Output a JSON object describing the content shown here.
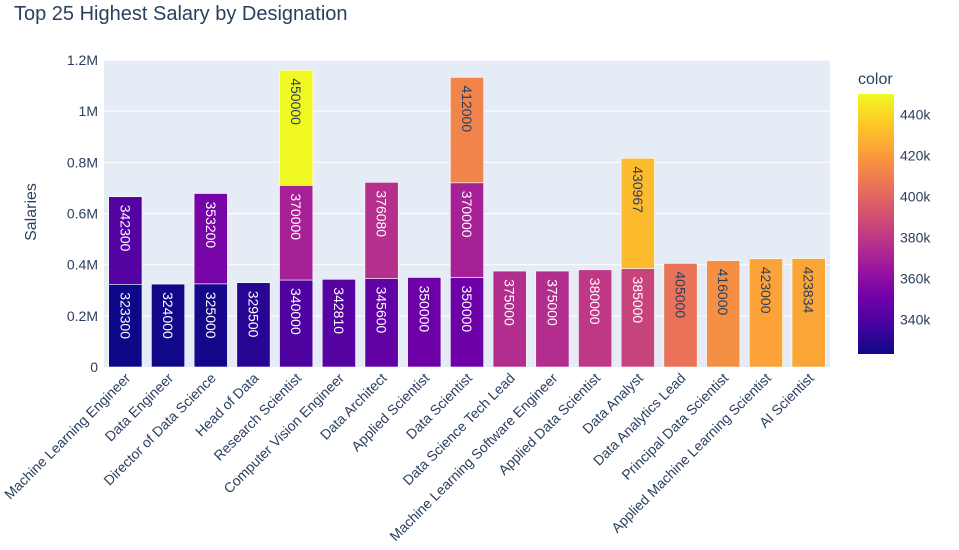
{
  "chart_data": {
    "type": "bar",
    "title": "Top 25 Highest Salary by Designation",
    "xlabel": "",
    "ylabel": "Salaries",
    "ylim": [
      0,
      1200000
    ],
    "yticks": [
      {
        "value": 0,
        "label": "0"
      },
      {
        "value": 200000,
        "label": "0.2M"
      },
      {
        "value": 400000,
        "label": "0.4M"
      },
      {
        "value": 600000,
        "label": "0.6M"
      },
      {
        "value": 800000,
        "label": "0.8M"
      },
      {
        "value": 1000000,
        "label": "1M"
      },
      {
        "value": 1200000,
        "label": "1.2M"
      }
    ],
    "stacked": true,
    "grid": true,
    "colorscale": "plasma",
    "colorbar": {
      "title": "color",
      "range": [
        323300,
        450000
      ],
      "ticks": [
        {
          "value": 340000,
          "label": "340k"
        },
        {
          "value": 360000,
          "label": "360k"
        },
        {
          "value": 380000,
          "label": "380k"
        },
        {
          "value": 400000,
          "label": "400k"
        },
        {
          "value": 420000,
          "label": "420k"
        },
        {
          "value": 440000,
          "label": "440k"
        }
      ]
    },
    "categories": [
      "Machine Learning Engineer",
      "Data Engineer",
      "Director of Data Science",
      "Head of Data",
      "Research Scientist",
      "Computer Vision Engineer",
      "Data Architect",
      "Applied Scientist",
      "Data Scientist",
      "Data Science Tech Lead",
      "Machine Learning Software Engineer",
      "Applied Data Scientist",
      "Data Analyst",
      "Data Analytics Lead",
      "Principal Data Scientist",
      "Applied Machine Learning Scientist",
      "AI Scientist"
    ],
    "stacks": [
      [
        323300,
        342300
      ],
      [
        324000
      ],
      [
        325000,
        353200
      ],
      [
        329500
      ],
      [
        340000,
        370000,
        450000
      ],
      [
        342810
      ],
      [
        345600,
        376080
      ],
      [
        350000
      ],
      [
        350000,
        370000,
        412000
      ],
      [
        375000
      ],
      [
        375000
      ],
      [
        380000
      ],
      [
        385000,
        430967
      ],
      [
        405000
      ],
      [
        416000
      ],
      [
        423000
      ],
      [
        423834
      ]
    ]
  }
}
